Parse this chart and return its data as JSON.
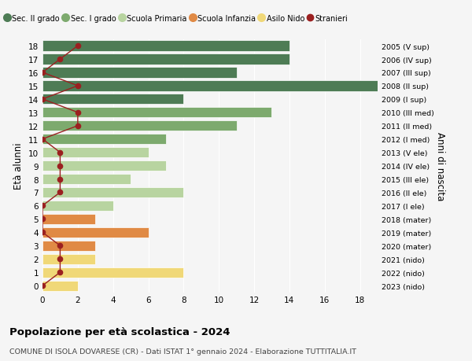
{
  "ages": [
    18,
    17,
    16,
    15,
    14,
    13,
    12,
    11,
    10,
    9,
    8,
    7,
    6,
    5,
    4,
    3,
    2,
    1,
    0
  ],
  "years": [
    "2005 (V sup)",
    "2006 (IV sup)",
    "2007 (III sup)",
    "2008 (II sup)",
    "2009 (I sup)",
    "2010 (III med)",
    "2011 (II med)",
    "2012 (I med)",
    "2013 (V ele)",
    "2014 (IV ele)",
    "2015 (III ele)",
    "2016 (II ele)",
    "2017 (I ele)",
    "2018 (mater)",
    "2019 (mater)",
    "2020 (mater)",
    "2021 (nido)",
    "2022 (nido)",
    "2023 (nido)"
  ],
  "bar_values": [
    14,
    14,
    11,
    19,
    8,
    13,
    11,
    7,
    6,
    7,
    5,
    8,
    4,
    3,
    6,
    3,
    3,
    8,
    2
  ],
  "bar_colors": [
    "#4e7c55",
    "#4e7c55",
    "#4e7c55",
    "#4e7c55",
    "#4e7c55",
    "#7daa6e",
    "#7daa6e",
    "#7daa6e",
    "#b8d4a0",
    "#b8d4a0",
    "#b8d4a0",
    "#b8d4a0",
    "#b8d4a0",
    "#e08a45",
    "#e08a45",
    "#e08a45",
    "#f0d878",
    "#f0d878",
    "#f0d878"
  ],
  "stranieri_values": [
    2,
    1,
    0,
    2,
    0,
    2,
    2,
    0,
    1,
    1,
    1,
    1,
    0,
    0,
    0,
    1,
    1,
    1,
    0
  ],
  "stranieri_color": "#9b2020",
  "legend_labels": [
    "Sec. II grado",
    "Sec. I grado",
    "Scuola Primaria",
    "Scuola Infanzia",
    "Asilo Nido",
    "Stranieri"
  ],
  "legend_colors": [
    "#4e7c55",
    "#7daa6e",
    "#b8d4a0",
    "#e08a45",
    "#f0d878",
    "#9b2020"
  ],
  "ylabel": "Età alunni",
  "ylabel_right": "Anni di nascita",
  "title": "Popolazione per età scolastica - 2024",
  "subtitle": "COMUNE DI ISOLA DOVARESE (CR) - Dati ISTAT 1° gennaio 2024 - Elaborazione TUTTITALIA.IT",
  "xlim": [
    0,
    19
  ],
  "xticks": [
    0,
    2,
    4,
    6,
    8,
    10,
    12,
    14,
    16,
    18
  ],
  "background_color": "#f5f5f5"
}
